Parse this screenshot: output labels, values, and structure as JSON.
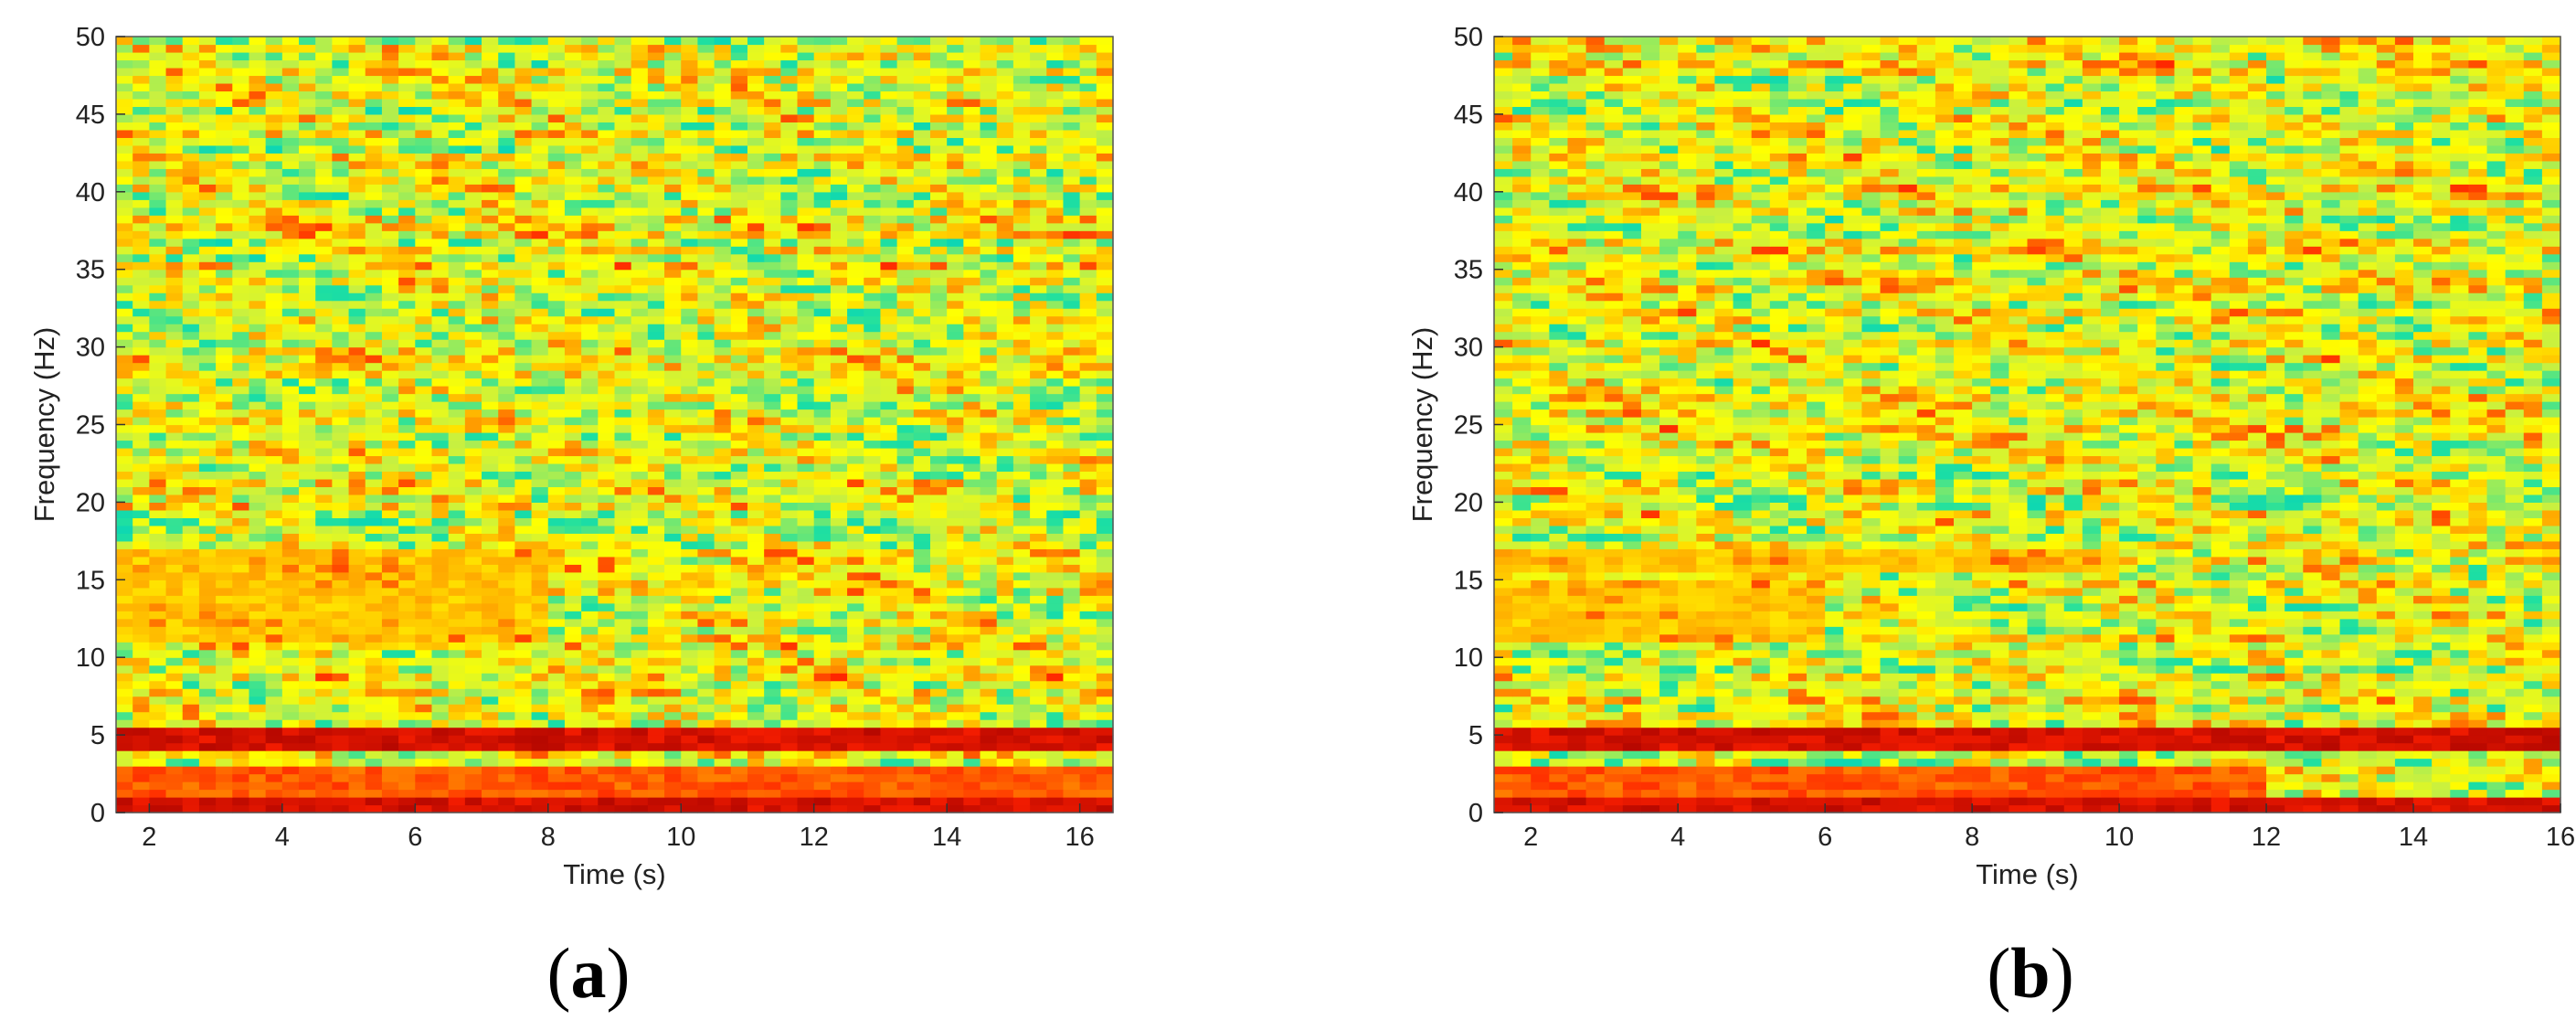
{
  "figure": {
    "panels": [
      {
        "label_open": "(",
        "label_letter": "a",
        "label_close": ")"
      },
      {
        "label_open": "(",
        "label_letter": "b",
        "label_close": ")"
      }
    ]
  },
  "chart_data": [
    {
      "type": "heatmap",
      "title": "",
      "xlabel": "Time (s)",
      "ylabel": "Frequency (Hz)",
      "xlim": [
        1.5,
        16.5
      ],
      "ylim": [
        0,
        50
      ],
      "xticks": [
        2,
        4,
        6,
        8,
        10,
        12,
        14,
        16
      ],
      "yticks": [
        0,
        5,
        10,
        15,
        20,
        25,
        30,
        35,
        40,
        45,
        50
      ],
      "colormap": [
        "#00008f",
        "#0050ff",
        "#00d0c0",
        "#20e0a0",
        "#c8f040",
        "#ffff00",
        "#ffa000",
        "#ff2000",
        "#a00000"
      ],
      "grid": false,
      "bands": [
        {
          "freq": [
            0,
            1
          ],
          "time": [
            1.5,
            16.5
          ],
          "level": "maximum"
        },
        {
          "freq": [
            1,
            3
          ],
          "time": [
            1.5,
            16.5
          ],
          "level": "high"
        },
        {
          "freq": [
            3.8,
            5.2
          ],
          "time": [
            1.5,
            16.5
          ],
          "level": "maximum"
        },
        {
          "freq": [
            11,
            17
          ],
          "time": [
            1.5,
            8
          ],
          "level": "elevated"
        },
        {
          "freq": [
            6,
            50
          ],
          "time": [
            1.5,
            16.5
          ],
          "level": "background mixed"
        }
      ]
    },
    {
      "type": "heatmap",
      "title": "",
      "xlabel": "Time (s)",
      "ylabel": "Frequency (Hz)",
      "xlim": [
        1.5,
        16
      ],
      "ylim": [
        0,
        50
      ],
      "xticks": [
        2,
        4,
        6,
        8,
        10,
        12,
        14,
        16
      ],
      "yticks": [
        0,
        5,
        10,
        15,
        20,
        25,
        30,
        35,
        40,
        45,
        50
      ],
      "colormap": [
        "#00008f",
        "#0050ff",
        "#00d0c0",
        "#20e0a0",
        "#c8f040",
        "#ffff00",
        "#ffa000",
        "#ff2000",
        "#a00000"
      ],
      "grid": false,
      "bands": [
        {
          "freq": [
            0,
            1
          ],
          "time": [
            1.5,
            16
          ],
          "level": "maximum"
        },
        {
          "freq": [
            1,
            3
          ],
          "time": [
            1.5,
            12
          ],
          "level": "high"
        },
        {
          "freq": [
            3.8,
            5.4
          ],
          "time": [
            1.5,
            16
          ],
          "level": "maximum"
        },
        {
          "freq": [
            15.5,
            17
          ],
          "time": [
            1.5,
            10
          ],
          "level": "elevated"
        },
        {
          "freq": [
            11,
            15
          ],
          "time": [
            1.5,
            6
          ],
          "level": "elevated"
        },
        {
          "freq": [
            6,
            50
          ],
          "time": [
            1.5,
            16
          ],
          "level": "background mixed"
        }
      ]
    }
  ]
}
